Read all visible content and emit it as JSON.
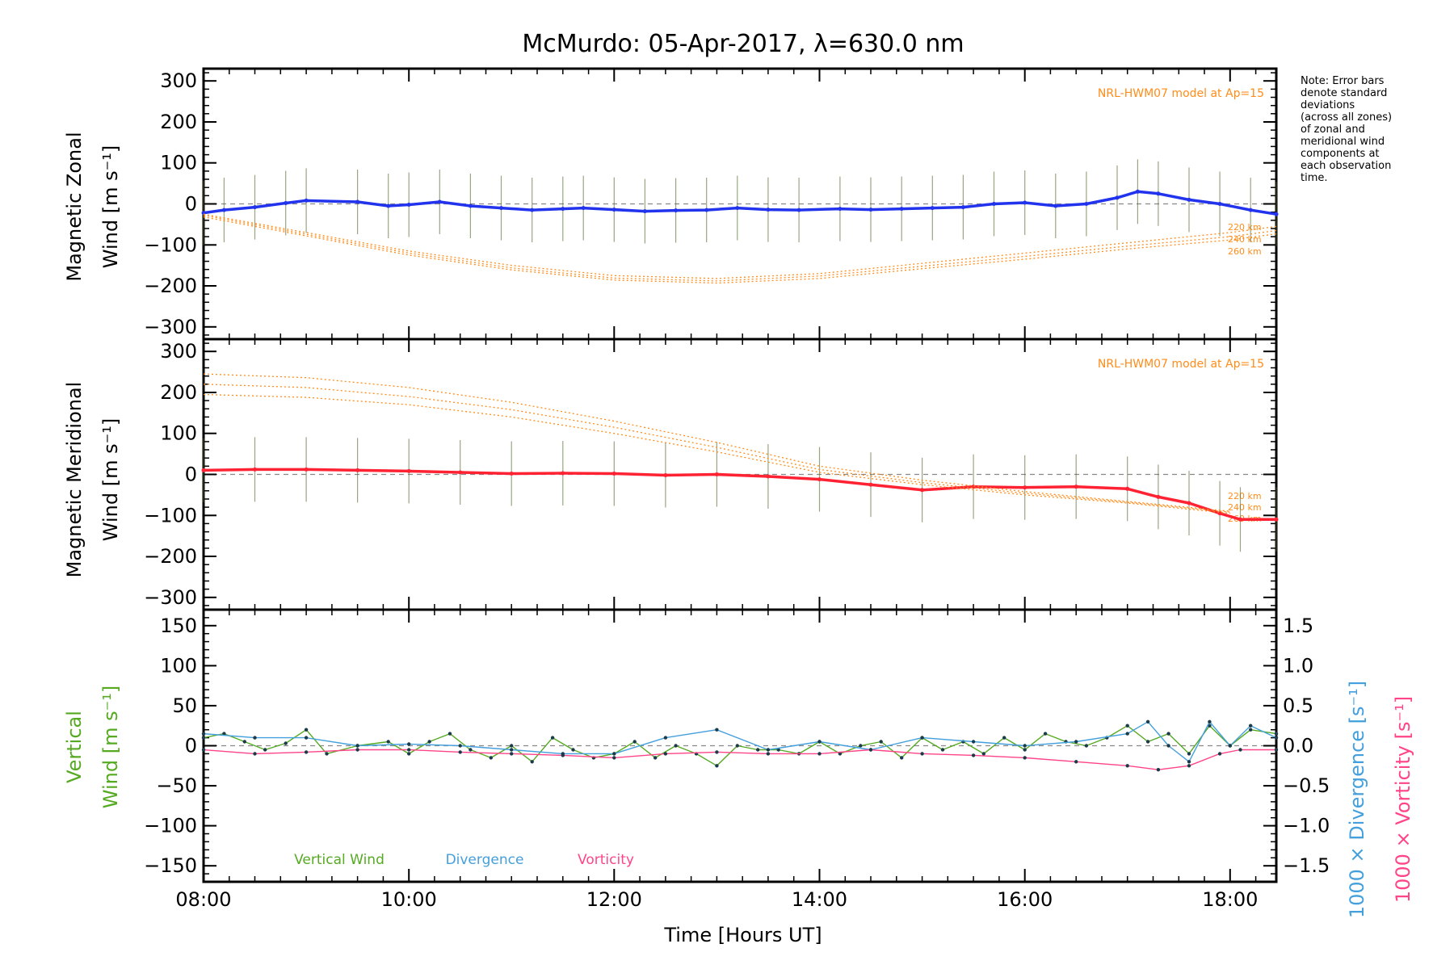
{
  "chart_data": {
    "type": "line",
    "title": "McMurdo: 05-Apr-2017, λ=630.0 nm",
    "xlabel": "Time [Hours UT]",
    "xlim": [
      8.0,
      18.45
    ],
    "x_ticks": [
      8,
      10,
      12,
      14,
      16,
      18
    ],
    "x_tick_labels": [
      "08:00",
      "10:00",
      "12:00",
      "14:00",
      "16:00",
      "18:00"
    ],
    "note": [
      "Note: Error bars",
      "denote standard",
      "deviations",
      "(across all zones)",
      "of zonal and",
      "meridional wind",
      "components at",
      "each observation",
      "time."
    ],
    "panels": [
      {
        "id": "zonal",
        "ylabel_line1": "Magnetic Zonal",
        "ylabel_line2": "Wind [m s⁻¹]",
        "ylim": [
          -330,
          330
        ],
        "y_ticks": [
          300,
          200,
          100,
          0,
          -100,
          -200,
          -300
        ],
        "y_tick_labels": [
          "300",
          "200",
          "100",
          "0",
          "−100",
          "−200",
          "−300"
        ],
        "model_label": "NRL-HWM07 model at Ap=15",
        "model_altitudes": [
          "220 km",
          "240 km",
          "260 km"
        ],
        "series": [
          {
            "name": "Magnetic Zonal Wind",
            "color": "#2233ee",
            "x": [
              8.0,
              8.2,
              8.5,
              8.8,
              9.0,
              9.5,
              9.8,
              10.0,
              10.3,
              10.6,
              10.9,
              11.2,
              11.5,
              11.7,
              12.0,
              12.3,
              12.6,
              12.9,
              13.2,
              13.5,
              13.8,
              14.2,
              14.5,
              14.8,
              15.1,
              15.4,
              15.7,
              16.0,
              16.3,
              16.6,
              16.9,
              17.1,
              17.3,
              17.6,
              17.9,
              18.2,
              18.45
            ],
            "y": [
              -22,
              -15,
              -8,
              2,
              8,
              5,
              -5,
              -2,
              5,
              -5,
              -10,
              -15,
              -12,
              -10,
              -14,
              -18,
              -16,
              -15,
              -10,
              -14,
              -15,
              -12,
              -14,
              -12,
              -10,
              -8,
              0,
              3,
              -5,
              0,
              15,
              30,
              25,
              10,
              0,
              -15,
              -25
            ]
          },
          {
            "name": "NRL-HWM07 220 km",
            "color": "#ff8c1a",
            "x": [
              8.0,
              9.0,
              10.0,
              11.0,
              12.0,
              13.0,
              14.0,
              15.0,
              16.0,
              17.0,
              18.0,
              18.45
            ],
            "y": [
              -25,
              -70,
              -115,
              -150,
              -175,
              -182,
              -170,
              -145,
              -120,
              -95,
              -70,
              -55
            ]
          },
          {
            "name": "NRL-HWM07 240 km",
            "color": "#ff8c1a",
            "x": [
              8.0,
              9.0,
              10.0,
              11.0,
              12.0,
              13.0,
              14.0,
              15.0,
              16.0,
              17.0,
              18.0,
              18.45
            ],
            "y": [
              -28,
              -74,
              -120,
              -156,
              -181,
              -188,
              -176,
              -152,
              -128,
              -103,
              -80,
              -65
            ]
          },
          {
            "name": "NRL-HWM07 260 km",
            "color": "#ff8c1a",
            "x": [
              8.0,
              9.0,
              10.0,
              11.0,
              12.0,
              13.0,
              14.0,
              15.0,
              16.0,
              17.0,
              18.0,
              18.45
            ],
            "y": [
              -32,
              -78,
              -125,
              -161,
              -186,
              -193,
              -182,
              -158,
              -135,
              -110,
              -88,
              -73
            ]
          }
        ]
      },
      {
        "id": "meridional",
        "ylabel_line1": "Magnetic Meridional",
        "ylabel_line2": "Wind [m s⁻¹]",
        "ylim": [
          -330,
          330
        ],
        "y_ticks": [
          300,
          200,
          100,
          0,
          -100,
          -200,
          -300
        ],
        "y_tick_labels": [
          "300",
          "200",
          "100",
          "0",
          "−100",
          "−200",
          "−300"
        ],
        "model_label": "NRL-HWM07 model at Ap=15",
        "model_altitudes": [
          "220 km",
          "240 km",
          "260 km"
        ],
        "series": [
          {
            "name": "Magnetic Meridional Wind",
            "color": "#ff2233",
            "x": [
              8.0,
              8.5,
              9.0,
              9.5,
              10.0,
              10.5,
              11.0,
              11.5,
              12.0,
              12.5,
              13.0,
              13.5,
              14.0,
              14.5,
              15.0,
              15.5,
              16.0,
              16.5,
              17.0,
              17.3,
              17.6,
              17.9,
              18.1,
              18.45
            ],
            "y": [
              10,
              12,
              12,
              10,
              8,
              5,
              2,
              3,
              2,
              -2,
              0,
              -5,
              -12,
              -25,
              -38,
              -30,
              -32,
              -30,
              -35,
              -55,
              -70,
              -95,
              -110,
              -110
            ]
          },
          {
            "name": "NRL-HWM07 220 km",
            "color": "#ff8c1a",
            "x": [
              8.0,
              9.0,
              10.0,
              11.0,
              12.0,
              13.0,
              14.0,
              15.0,
              16.0,
              17.0,
              18.0
            ],
            "y": [
              195,
              188,
              170,
              140,
              100,
              55,
              5,
              -25,
              -50,
              -70,
              -95
            ]
          },
          {
            "name": "NRL-HWM07 240 km",
            "color": "#ff8c1a",
            "x": [
              8.0,
              9.0,
              10.0,
              11.0,
              12.0,
              13.0,
              14.0,
              15.0,
              16.0,
              17.0,
              18.0
            ],
            "y": [
              220,
              212,
              190,
              158,
              115,
              66,
              12,
              -20,
              -46,
              -68,
              -92
            ]
          },
          {
            "name": "NRL-HWM07 260 km",
            "color": "#ff8c1a",
            "x": [
              8.0,
              9.0,
              10.0,
              11.0,
              12.0,
              13.0,
              14.0,
              15.0,
              16.0,
              17.0,
              18.0
            ],
            "y": [
              245,
              236,
              212,
              176,
              130,
              78,
              20,
              -14,
              -42,
              -66,
              -90
            ]
          }
        ]
      },
      {
        "id": "vertical",
        "ylabel_line1": "Vertical",
        "ylabel_line2": "Wind [m s⁻¹]",
        "ylabel_color": "#55aa22",
        "ylim": [
          -170,
          170
        ],
        "y_ticks": [
          150,
          100,
          50,
          0,
          -50,
          -100,
          -150
        ],
        "y_tick_labels": [
          "150",
          "100",
          "50",
          "0",
          "−50",
          "−100",
          "−150"
        ],
        "y2lim": [
          -1.7,
          1.7
        ],
        "y2_ticks": [
          1.5,
          1.0,
          0.5,
          0.0,
          -0.5,
          -1.0,
          -1.5
        ],
        "y2_tick_labels": [
          "1.5",
          "1.0",
          "0.5",
          "0.0",
          "−0.5",
          "−1.0",
          "−1.5"
        ],
        "y2_label_divergence": "1000 × Divergence [s⁻¹]",
        "y2_label_vorticity": "1000 × Vorticity [s⁻¹]",
        "legend": [
          {
            "label": "Vertical Wind",
            "color": "#55aa22"
          },
          {
            "label": "Divergence",
            "color": "#44a0dd"
          },
          {
            "label": "Vorticity",
            "color": "#ff4488"
          }
        ],
        "series": [
          {
            "name": "Vertical Wind",
            "color": "#55aa22",
            "axis": "left",
            "x": [
              8.0,
              8.2,
              8.4,
              8.6,
              8.8,
              9.0,
              9.2,
              9.5,
              9.8,
              10.0,
              10.2,
              10.4,
              10.6,
              10.8,
              11.0,
              11.2,
              11.4,
              11.6,
              11.8,
              12.0,
              12.2,
              12.4,
              12.6,
              12.8,
              13.0,
              13.2,
              13.4,
              13.6,
              13.8,
              14.0,
              14.2,
              14.4,
              14.6,
              14.8,
              15.0,
              15.2,
              15.4,
              15.6,
              15.8,
              16.0,
              16.2,
              16.4,
              16.6,
              16.8,
              17.0,
              17.2,
              17.4,
              17.6,
              17.8,
              18.0,
              18.2,
              18.45
            ],
            "y": [
              10,
              15,
              5,
              -5,
              3,
              20,
              -10,
              0,
              5,
              -10,
              5,
              15,
              -5,
              -15,
              0,
              -20,
              10,
              -5,
              -15,
              -10,
              5,
              -15,
              0,
              -10,
              -25,
              0,
              -5,
              -5,
              -10,
              5,
              -10,
              0,
              5,
              -15,
              10,
              -5,
              5,
              -10,
              10,
              -5,
              15,
              5,
              0,
              10,
              25,
              5,
              15,
              -10,
              25,
              0,
              20,
              15
            ]
          },
          {
            "name": "Divergence",
            "color": "#44a0dd",
            "axis": "right",
            "x": [
              8.0,
              8.5,
              9.0,
              9.5,
              10.0,
              10.5,
              11.0,
              11.5,
              12.0,
              12.5,
              13.0,
              13.5,
              14.0,
              14.5,
              15.0,
              15.5,
              16.0,
              16.5,
              17.0,
              17.2,
              17.4,
              17.6,
              17.8,
              18.0,
              18.2,
              18.45
            ],
            "y": [
              0.15,
              0.1,
              0.1,
              0.0,
              0.02,
              0.0,
              -0.05,
              -0.1,
              -0.1,
              0.1,
              0.2,
              -0.05,
              0.05,
              -0.05,
              0.1,
              0.05,
              0.0,
              0.05,
              0.15,
              0.3,
              0.0,
              -0.2,
              0.3,
              0.0,
              0.25,
              0.1
            ]
          },
          {
            "name": "Vorticity",
            "color": "#ff4488",
            "axis": "right",
            "x": [
              8.0,
              8.5,
              9.0,
              9.5,
              10.0,
              10.5,
              11.0,
              11.5,
              12.0,
              12.5,
              13.0,
              13.5,
              14.0,
              14.5,
              15.0,
              15.5,
              16.0,
              16.5,
              17.0,
              17.3,
              17.6,
              17.9,
              18.1,
              18.45
            ],
            "y": [
              -0.05,
              -0.1,
              -0.08,
              -0.05,
              -0.05,
              -0.08,
              -0.1,
              -0.12,
              -0.15,
              -0.1,
              -0.08,
              -0.1,
              -0.1,
              -0.05,
              -0.1,
              -0.12,
              -0.15,
              -0.2,
              -0.25,
              -0.3,
              -0.25,
              -0.1,
              -0.05,
              -0.05
            ]
          }
        ]
      }
    ]
  }
}
